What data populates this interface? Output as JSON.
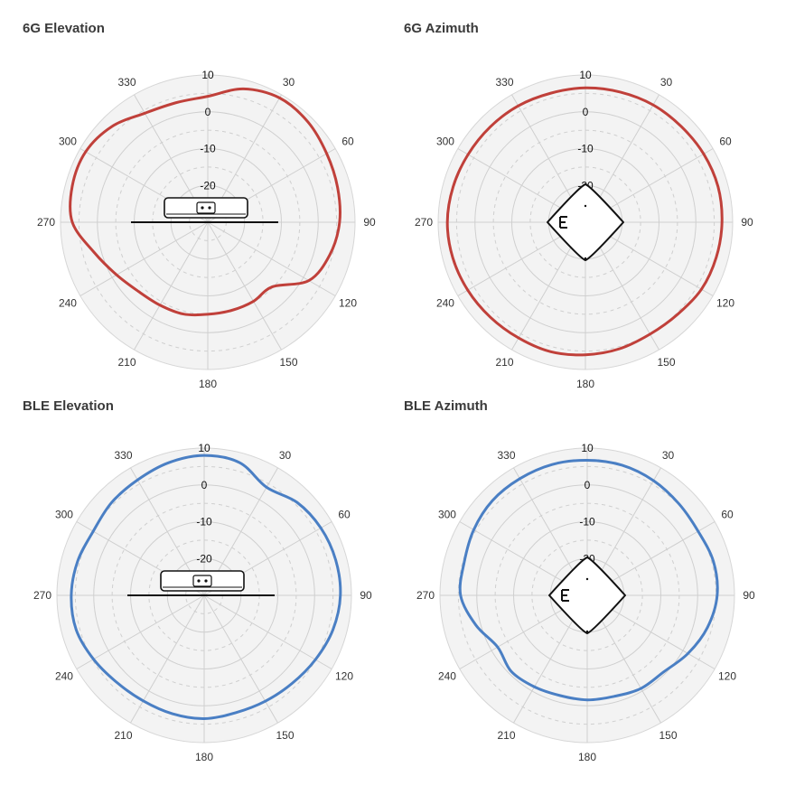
{
  "figure": {
    "angle_labels": [
      "0",
      "30",
      "60",
      "90",
      "120",
      "150",
      "180",
      "210",
      "240",
      "270",
      "300",
      "330"
    ],
    "ring_labels": [
      "10",
      "0",
      "-10",
      "-20"
    ],
    "colors": {
      "red": "#c0403a",
      "blue": "#4a7fc4",
      "grid": "#cfcfcf",
      "face": "#f3f3f3",
      "device": "#111111"
    }
  },
  "chart_data": [
    {
      "type": "polar-line",
      "title": "6G Elevation",
      "device": "ceiling-mount-side",
      "color": "#c0403a",
      "rlim": [
        -30,
        10
      ],
      "theta_deg": [
        0,
        15,
        30,
        45,
        60,
        75,
        90,
        105,
        120,
        135,
        150,
        165,
        180,
        195,
        210,
        225,
        240,
        255,
        270,
        285,
        300,
        315,
        330,
        345
      ],
      "values_db": [
        4.2,
        7.5,
        9.0,
        8.5,
        7.3,
        6.5,
        5.8,
        4.3,
        1.7,
        -5.2,
        -5.2,
        -5.2,
        -5.0,
        -4.2,
        -4.0,
        -3.4,
        -1.4,
        1.9,
        6.8,
        8.1,
        8.3,
        6.8,
        4.2,
        3.6
      ]
    },
    {
      "type": "polar-line",
      "title": "6G Azimuth",
      "device": "ceiling-mount-top",
      "color": "#c0403a",
      "rlim": [
        -30,
        10
      ],
      "theta_deg": [
        0,
        15,
        30,
        45,
        60,
        75,
        90,
        105,
        120,
        135,
        150,
        165,
        180,
        195,
        210,
        225,
        240,
        255,
        270,
        285,
        300,
        315,
        330,
        345
      ],
      "values_db": [
        6.5,
        6.6,
        6.8,
        6.8,
        7.1,
        7.3,
        7.1,
        6.8,
        6.4,
        5.4,
        5.1,
        5.6,
        6.0,
        6.4,
        6.3,
        6.5,
        6.9,
        7.3,
        7.5,
        7.2,
        6.8,
        6.6,
        6.5,
        6.3
      ]
    },
    {
      "type": "polar-line",
      "title": "BLE Elevation",
      "device": "ceiling-mount-side",
      "color": "#4a7fc4",
      "rlim": [
        -30,
        10
      ],
      "theta_deg": [
        0,
        15,
        30,
        45,
        60,
        75,
        90,
        105,
        120,
        135,
        150,
        165,
        180,
        195,
        210,
        225,
        240,
        255,
        270,
        285,
        300,
        315,
        330,
        345
      ],
      "values_db": [
        8.0,
        7.3,
        3.9,
        5.7,
        6.6,
        7.0,
        7.0,
        6.2,
        4.9,
        3.8,
        3.2,
        3.0,
        3.5,
        3.3,
        3.1,
        3.5,
        4.7,
        6.0,
        6.1,
        5.6,
        4.8,
        5.6,
        6.2,
        7.3
      ]
    },
    {
      "type": "polar-line",
      "title": "BLE Azimuth",
      "device": "ceiling-mount-top",
      "color": "#4a7fc4",
      "rlim": [
        -30,
        10
      ],
      "theta_deg": [
        0,
        15,
        30,
        45,
        60,
        75,
        90,
        105,
        120,
        135,
        150,
        165,
        180,
        195,
        210,
        225,
        240,
        255,
        270,
        285,
        300,
        315,
        330,
        345
      ],
      "values_db": [
        6.7,
        6.6,
        6.0,
        5.2,
        4.8,
        5.5,
        5.3,
        3.8,
        1.6,
        -0.6,
        -0.8,
        -1.6,
        -1.6,
        -1.8,
        -1.3,
        -0.8,
        -1.9,
        1.3,
        4.4,
        4.6,
        5.6,
        6.4,
        6.6,
        6.8
      ]
    }
  ]
}
